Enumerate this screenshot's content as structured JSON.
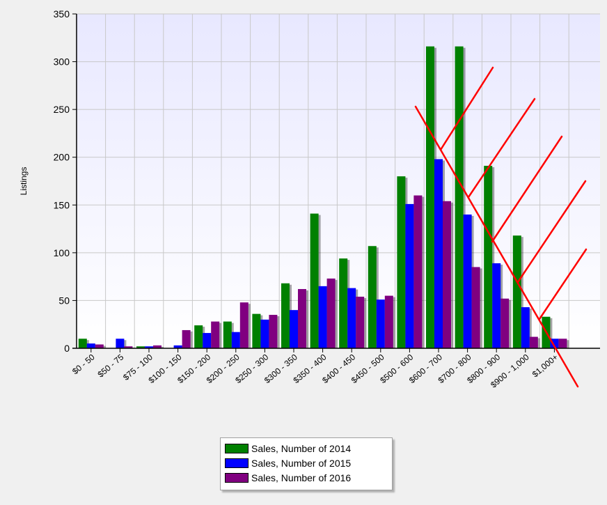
{
  "chart_data": {
    "type": "bar",
    "title": "",
    "xlabel": "",
    "ylabel": "Listings",
    "ylim": [
      0,
      350
    ],
    "yticks": [
      0,
      50,
      100,
      150,
      200,
      250,
      300,
      350
    ],
    "grid": true,
    "legend_position": "bottom",
    "categories": [
      "$0 - 50",
      "$50 - 75",
      "$75 - 100",
      "$100 - 150",
      "$150 - 200",
      "$200 - 250",
      "$250 - 300",
      "$300 - 350",
      "$350 - 400",
      "$400 - 450",
      "$450 - 500",
      "$500 - 600",
      "$600 - 700",
      "$700 - 800",
      "$800 - 900",
      "$900 - 1,000",
      "$1,000+"
    ],
    "series": [
      {
        "name": "Sales, Number of 2014",
        "color": "#008000",
        "values": [
          10,
          0,
          2,
          0,
          24,
          28,
          36,
          68,
          141,
          94,
          107,
          180,
          316,
          316,
          191,
          118,
          33
        ]
      },
      {
        "name": "Sales, Number of 2015",
        "color": "#0000ff",
        "values": [
          5,
          10,
          2,
          3,
          16,
          17,
          30,
          40,
          65,
          63,
          51,
          151,
          198,
          140,
          89,
          43,
          10
        ]
      },
      {
        "name": "Sales, Number of 2016",
        "color": "#800080",
        "values": [
          4,
          2,
          3,
          19,
          28,
          48,
          35,
          62,
          73,
          54,
          55,
          160,
          154,
          85,
          52,
          12,
          10
        ]
      }
    ],
    "annotation": {
      "description": "red hand-drawn strike lines over the high price ranges",
      "color": "#ff0000"
    }
  }
}
